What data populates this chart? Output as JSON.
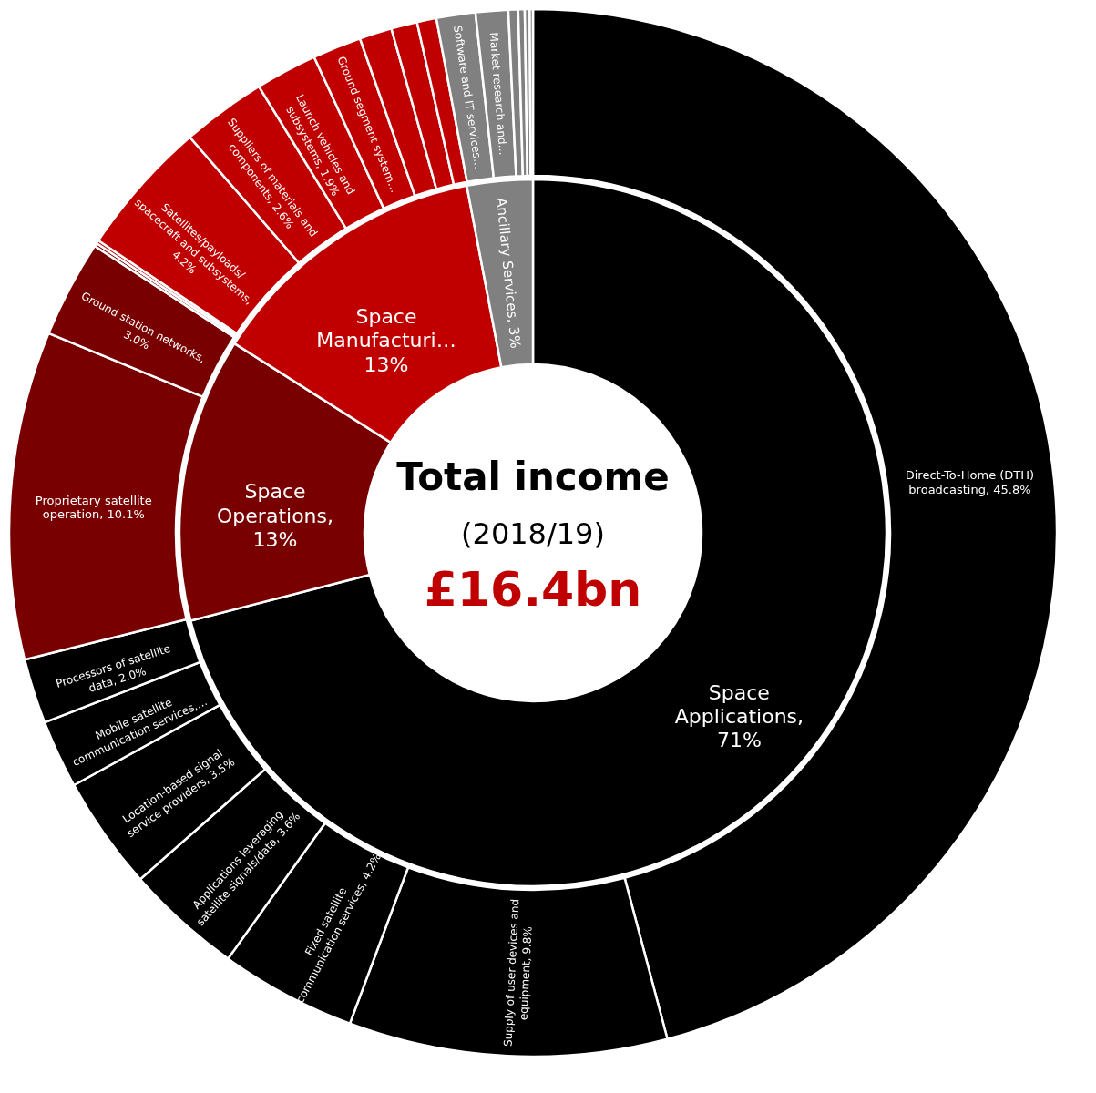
{
  "chart_data": {
    "type": "donut",
    "annotations": [
      "Total income",
      "(2018/19)",
      "£16.4bn"
    ],
    "series": [
      {
        "value_labels": [
          "Space Applications, 71%",
          "Space Operations, 13%",
          "Space Manufacturi… 13%",
          "Ancillary Services, 3%"
        ],
        "values": [
          71,
          13,
          13,
          3
        ],
        "colors": [
          "#000000",
          "#780000",
          "#c00000",
          "#808080"
        ]
      },
      {
        "value_labels": [
          "Direct-To-Home (DTH) broadcasting, 45.8%",
          "Supply of user devices and equipment, 9.8%",
          "Fixed satellite communication services, 4.2%",
          "Applications leveraging satellite signals/data, 3.6%",
          "Location-based signal service providers, 3.5%",
          "Mobile satellite communication services,…",
          "Processors of satellite data, 2.0%",
          "Proprietary satellite operation, 10.1%",
          "Ground station networks, 3.0%",
          null,
          null,
          "Satellites/payloads/ spacecraft and subsystems, 4.2%",
          "Suppliers of materials and components, 2.6%",
          "Launch vehicles and subsystems, 1.9%",
          "Ground segment system…",
          null,
          null,
          null,
          "Software and IT services…",
          "Market research and…",
          null,
          null,
          null,
          null
        ],
        "values": [
          45.8,
          9.8,
          4.2,
          3.6,
          3.5,
          2.1,
          2.0,
          10.1,
          3.0,
          0.1,
          0.1,
          4.2,
          2.6,
          1.9,
          1.5,
          1.0,
          0.8,
          0.6,
          1.2,
          1.0,
          0.3,
          0.2,
          0.15,
          0.1
        ],
        "colors": [
          "#000000",
          "#000000",
          "#000000",
          "#000000",
          "#000000",
          "#000000",
          "#000000",
          "#780000",
          "#780000",
          "#780000",
          "#c00000",
          "#c00000",
          "#c00000",
          "#c00000",
          "#c00000",
          "#c00000",
          "#c00000",
          "#c00000",
          "#808080",
          "#808080",
          "#808080",
          "#808080",
          "#808080",
          "#808080"
        ]
      }
    ]
  }
}
